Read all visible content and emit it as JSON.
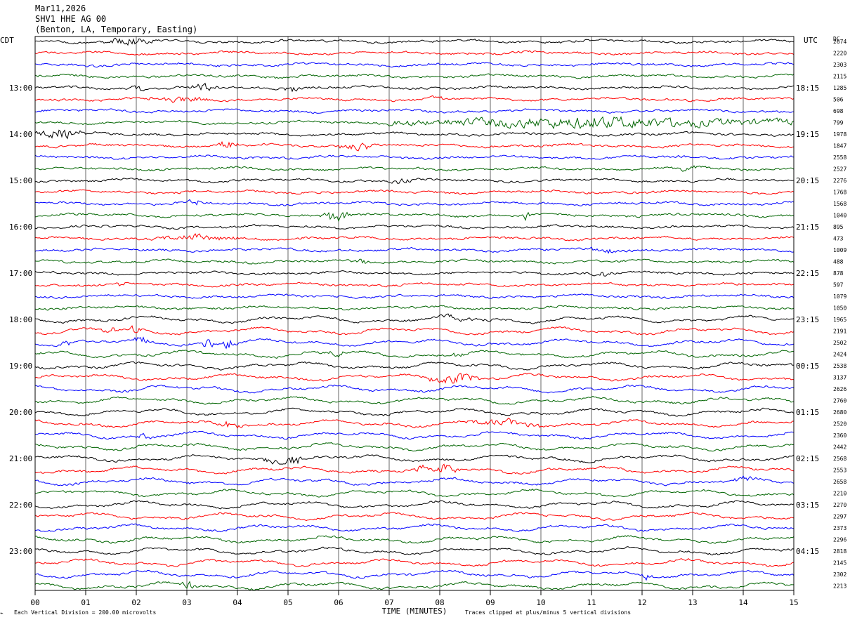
{
  "header": {
    "date": "Mar11,2026",
    "channel": "SHV1 HHE AG 00",
    "location": "(Benton, LA, Temporary, Easting)"
  },
  "left_zone": "CDT",
  "right_zone": "UTC",
  "dc_header": "DC",
  "x_axis_title": "TIME (MINUTES)",
  "footer": {
    "scale_note": "Each Vertical Division =  200.00 microvolts",
    "clip_note": "Traces clipped at plus/minus 5 vertical divisions"
  },
  "chart_data": {
    "type": "line",
    "title": "SHV1 HHE AG 00",
    "xlabel": "TIME (MINUTES)",
    "xlim": [
      0,
      15
    ],
    "x_ticks": [
      "00",
      "01",
      "02",
      "03",
      "04",
      "05",
      "06",
      "07",
      "08",
      "09",
      "10",
      "11",
      "12",
      "13",
      "14",
      "15"
    ],
    "trace_colors": [
      "#000000",
      "#ff0000",
      "#0000ff",
      "#006400"
    ],
    "row_count": 48,
    "left_hour_labels": [
      {
        "row": 4,
        "text": "13:00"
      },
      {
        "row": 8,
        "text": "14:00"
      },
      {
        "row": 12,
        "text": "15:00"
      },
      {
        "row": 16,
        "text": "16:00"
      },
      {
        "row": 20,
        "text": "17:00"
      },
      {
        "row": 24,
        "text": "18:00"
      },
      {
        "row": 28,
        "text": "19:00"
      },
      {
        "row": 32,
        "text": "20:00"
      },
      {
        "row": 36,
        "text": "21:00"
      },
      {
        "row": 40,
        "text": "22:00"
      },
      {
        "row": 44,
        "text": "23:00"
      }
    ],
    "right_hour_labels": [
      {
        "row": 4,
        "text": "18:15"
      },
      {
        "row": 8,
        "text": "19:15"
      },
      {
        "row": 12,
        "text": "20:15"
      },
      {
        "row": 16,
        "text": "21:15"
      },
      {
        "row": 20,
        "text": "22:15"
      },
      {
        "row": 24,
        "text": "23:15"
      },
      {
        "row": 28,
        "text": "00:15"
      },
      {
        "row": 32,
        "text": "01:15"
      },
      {
        "row": 36,
        "text": "02:15"
      },
      {
        "row": 40,
        "text": "03:15"
      },
      {
        "row": 44,
        "text": "04:15"
      }
    ],
    "dc_offsets": [
      "2674",
      "2220",
      "2303",
      "2115",
      "1285",
      "506",
      "698",
      "799",
      "1978",
      "1847",
      "2558",
      "2527",
      "2276",
      "1768",
      "1568",
      "1040",
      "895",
      "473",
      "1009",
      "488",
      "878",
      "597",
      "1079",
      "1050",
      "1965",
      "2191",
      "2502",
      "2424",
      "2538",
      "3137",
      "2626",
      "2760",
      "2680",
      "2520",
      "2360",
      "2442",
      "2568",
      "2553",
      "2658",
      "2210",
      "2270",
      "2297",
      "2373",
      "2296",
      "2818",
      "2145",
      "2302",
      "2213"
    ],
    "events": [
      {
        "row": 0,
        "start_min": 1.3,
        "end_min": 2.4,
        "amplitude": 1.3
      },
      {
        "row": 4,
        "start_min": 1.9,
        "end_min": 2.2,
        "amplitude": 1.0
      },
      {
        "row": 4,
        "start_min": 3.0,
        "end_min": 3.7,
        "amplitude": 1.4
      },
      {
        "row": 4,
        "start_min": 4.8,
        "end_min": 5.3,
        "amplitude": 1.0
      },
      {
        "row": 5,
        "start_min": 2.2,
        "end_min": 3.4,
        "amplitude": 1.0
      },
      {
        "row": 5,
        "start_min": 7.8,
        "end_min": 8.1,
        "amplitude": 1.2
      },
      {
        "row": 7,
        "start_min": 7.0,
        "end_min": 15.0,
        "amplitude": 2.0
      },
      {
        "row": 8,
        "start_min": 0.0,
        "end_min": 1.0,
        "amplitude": 1.8
      },
      {
        "row": 9,
        "start_min": 3.6,
        "end_min": 4.0,
        "amplitude": 2.2
      },
      {
        "row": 9,
        "start_min": 6.0,
        "end_min": 6.8,
        "amplitude": 1.3
      },
      {
        "row": 11,
        "start_min": 12.6,
        "end_min": 13.3,
        "amplitude": 1.3
      },
      {
        "row": 12,
        "start_min": 7.0,
        "end_min": 7.5,
        "amplitude": 1.0
      },
      {
        "row": 14,
        "start_min": 3.0,
        "end_min": 3.3,
        "amplitude": 1.0
      },
      {
        "row": 15,
        "start_min": 5.6,
        "end_min": 6.3,
        "amplitude": 2.0
      },
      {
        "row": 15,
        "start_min": 9.65,
        "end_min": 9.8,
        "amplitude": 2.6
      },
      {
        "row": 17,
        "start_min": 2.3,
        "end_min": 4.0,
        "amplitude": 0.9
      },
      {
        "row": 18,
        "start_min": 11.0,
        "end_min": 11.5,
        "amplitude": 1.1
      },
      {
        "row": 19,
        "start_min": 6.2,
        "end_min": 6.6,
        "amplitude": 1.0
      },
      {
        "row": 20,
        "start_min": 11.0,
        "end_min": 11.4,
        "amplitude": 1.2
      },
      {
        "row": 21,
        "start_min": 1.6,
        "end_min": 1.8,
        "amplitude": 1.0
      },
      {
        "row": 24,
        "start_min": 8.0,
        "end_min": 9.0,
        "amplitude": 1.0
      },
      {
        "row": 25,
        "start_min": 1.3,
        "end_min": 1.6,
        "amplitude": 1.3
      },
      {
        "row": 25,
        "start_min": 1.8,
        "end_min": 2.1,
        "amplitude": 1.1
      },
      {
        "row": 26,
        "start_min": 0.5,
        "end_min": 0.7,
        "amplitude": 1.4
      },
      {
        "row": 26,
        "start_min": 1.9,
        "end_min": 2.3,
        "amplitude": 1.4
      },
      {
        "row": 26,
        "start_min": 3.3,
        "end_min": 3.5,
        "amplitude": 2.5
      },
      {
        "row": 26,
        "start_min": 3.7,
        "end_min": 4.0,
        "amplitude": 2.3
      },
      {
        "row": 27,
        "start_min": 5.8,
        "end_min": 6.1,
        "amplitude": 1.6
      },
      {
        "row": 27,
        "start_min": 8.2,
        "end_min": 8.5,
        "amplitude": 1.0
      },
      {
        "row": 29,
        "start_min": 7.8,
        "end_min": 8.8,
        "amplitude": 2.0
      },
      {
        "row": 33,
        "start_min": 3.5,
        "end_min": 4.2,
        "amplitude": 1.3
      },
      {
        "row": 33,
        "start_min": 8.5,
        "end_min": 10.0,
        "amplitude": 1.0
      },
      {
        "row": 34,
        "start_min": 2.0,
        "end_min": 2.4,
        "amplitude": 1.0
      },
      {
        "row": 36,
        "start_min": 4.5,
        "end_min": 5.4,
        "amplitude": 2.2
      },
      {
        "row": 37,
        "start_min": 7.5,
        "end_min": 8.4,
        "amplitude": 2.0
      },
      {
        "row": 38,
        "start_min": 13.8,
        "end_min": 14.2,
        "amplitude": 1.0
      },
      {
        "row": 44,
        "start_min": 0.0,
        "end_min": 0.1,
        "amplitude": 1.5
      },
      {
        "row": 46,
        "start_min": 12.0,
        "end_min": 12.2,
        "amplitude": 1.3
      },
      {
        "row": 47,
        "start_min": 2.9,
        "end_min": 3.2,
        "amplitude": 1.2
      }
    ]
  }
}
